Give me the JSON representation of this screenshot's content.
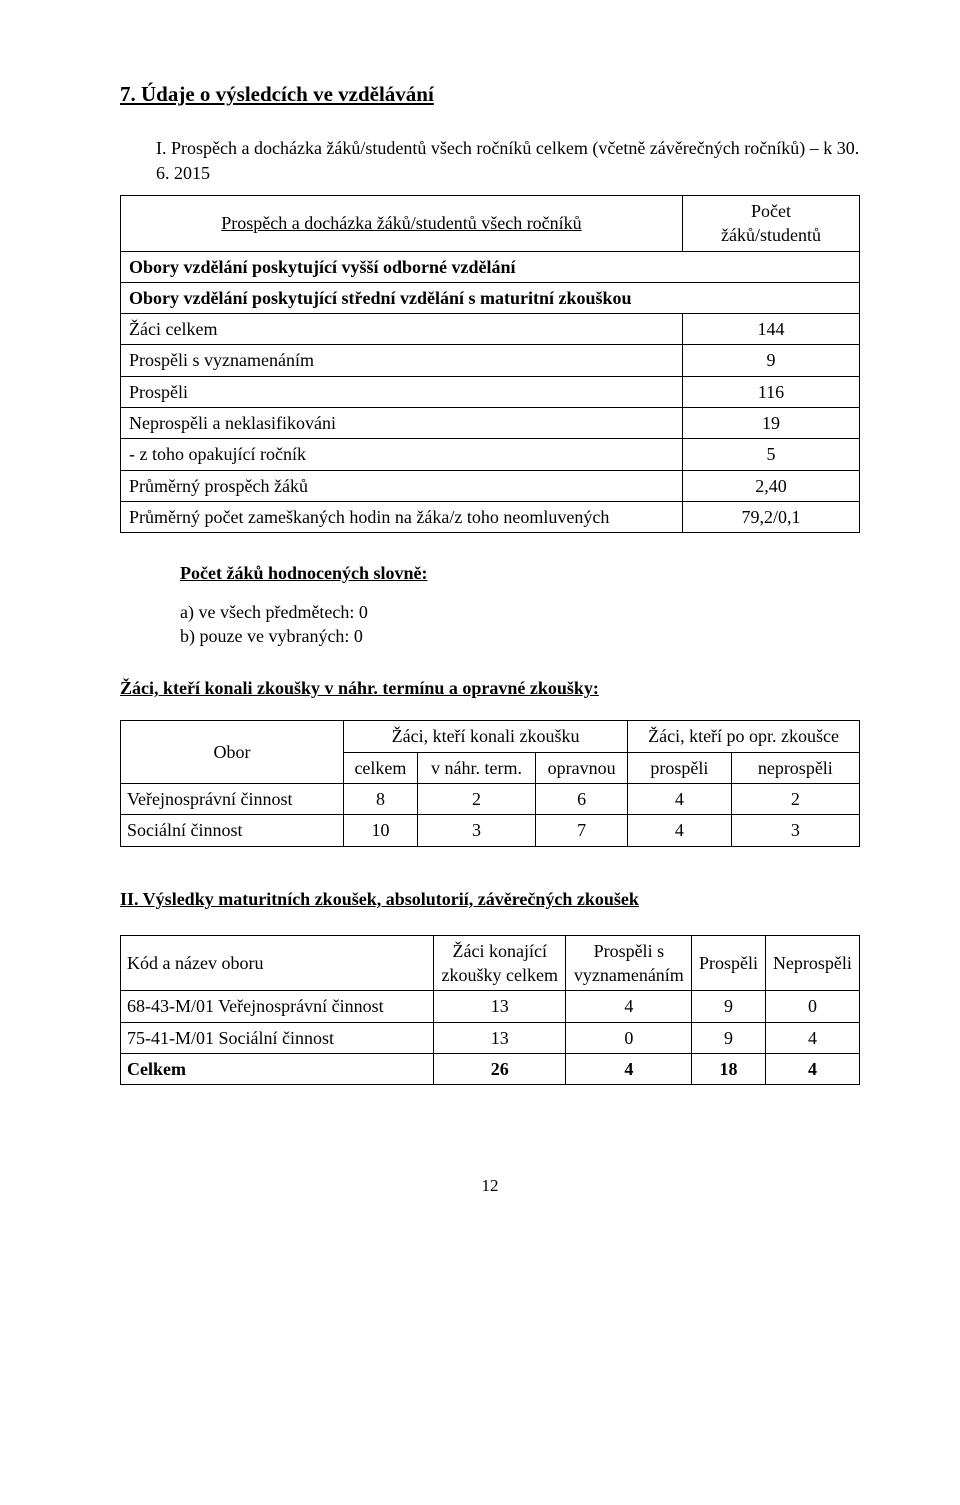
{
  "section": {
    "title": "7. Údaje o výsledcích ve vzdělávání",
    "sub_i": "I. Prospěch a docházka žáků/studentů všech ročníků celkem (včetně závěrečných ročníků) – k 30. 6. 2015"
  },
  "table1": {
    "header_left": "Prospěch a docházka žáků/studentů všech ročníků",
    "header_right_l1": "Počet",
    "header_right_l2": "žáků/studentů",
    "row_obory_vyssi": "Obory vzdělání poskytující vyšší odborné vzdělání",
    "row_obory_stredni": "Obory vzdělání poskytující střední vzdělání s maturitní zkouškou",
    "rows": [
      {
        "label": "Žáci celkem",
        "value": "144"
      },
      {
        "label": "Prospěli s vyznamenáním",
        "value": "9"
      },
      {
        "label": "Prospěli",
        "value": "116"
      },
      {
        "label": "Neprospěli a neklasifikováni",
        "value": "19"
      },
      {
        "label": "- z toho opakující ročník",
        "value": "5"
      },
      {
        "label": "Průměrný prospěch žáků",
        "value": "2,40"
      },
      {
        "label": "Průměrný počet zameškaných hodin na žáka/z toho neomluvených",
        "value": "79,2/0,1"
      }
    ]
  },
  "slovne": {
    "heading": "Počet žáků hodnocených slovně:",
    "a": "a) ve všech předmětech: 0",
    "b": "b) pouze ve vybraných:  0"
  },
  "zaci_heading": "Žáci, kteří konali zkoušky v náhr. termínu a opravné zkoušky:",
  "table2": {
    "h_obor": "Obor",
    "h_konali": "Žáci, kteří konali zkoušku",
    "h_po": "Žáci, kteří po opr. zkoušce",
    "h_celkem": "celkem",
    "h_nahr": "v náhr. term.",
    "h_opr": "opravnou",
    "h_prospeli": "prospěli",
    "h_neprospeli": "neprospěli",
    "rows": [
      {
        "obor": "Veřejnosprávní činnost",
        "celkem": "8",
        "nahr": "2",
        "opr": "6",
        "pros": "4",
        "nepr": "2"
      },
      {
        "obor": "Sociální činnost",
        "celkem": "10",
        "nahr": "3",
        "opr": "7",
        "pros": "4",
        "nepr": "3"
      }
    ]
  },
  "sec2_heading": "II. Výsledky maturitních zkoušek, absolutorií, závěrečných zkoušek",
  "table3": {
    "h_kod": "Kód a název oboru",
    "h_konajici_l1": "Žáci konající",
    "h_konajici_l2": "zkoušky celkem",
    "h_vyz_l1": "Prospěli s",
    "h_vyz_l2": "vyznamenáním",
    "h_prospeli": "Prospěli",
    "h_neprospeli": "Neprospěli",
    "rows": [
      {
        "kod": "68-43-M/01 Veřejnosprávní činnost",
        "kon": "13",
        "vyz": "4",
        "pros": "9",
        "nepr": "0"
      },
      {
        "kod": "75-41-M/01 Sociální činnost",
        "kon": "13",
        "vyz": "0",
        "pros": "9",
        "nepr": "4"
      }
    ],
    "total": {
      "kod": "Celkem",
      "kon": "26",
      "vyz": "4",
      "pros": "18",
      "nepr": "4"
    }
  },
  "page_number": "12"
}
